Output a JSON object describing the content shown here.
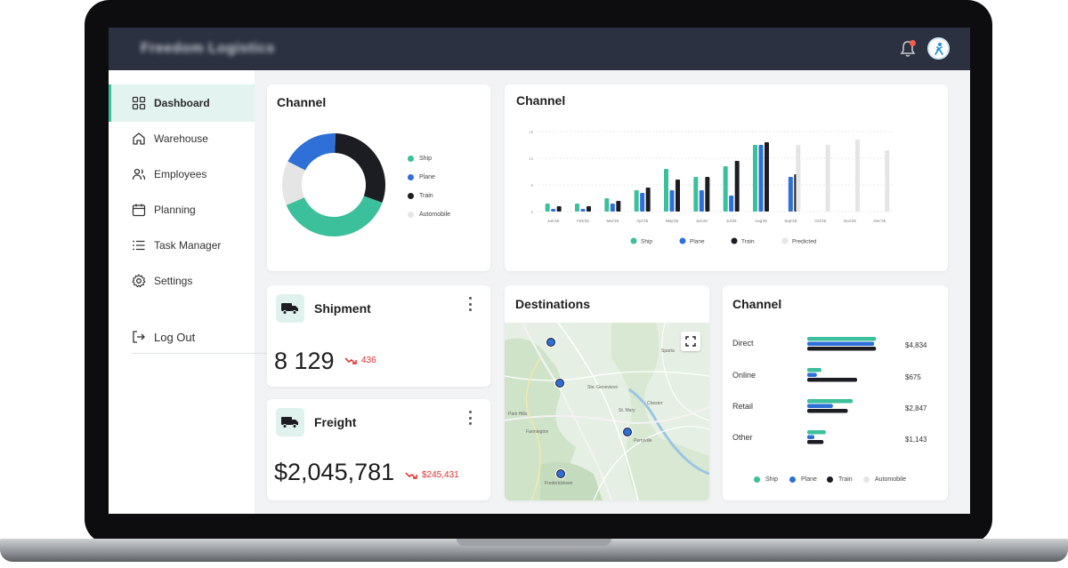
{
  "app": {
    "brand": "Freedom Logistics"
  },
  "colors": {
    "ship": "#3cbf9b",
    "plane": "#2e6fd8",
    "train": "#1b1d23",
    "automobile": "#e5e5e5",
    "predicted": "#e5e5e5",
    "accent": "#3cbf9b",
    "negative": "#e02b2b"
  },
  "topbar": {
    "bell_icon": "bell-icon",
    "avatar_icon": "avatar"
  },
  "sidebar": {
    "items": [
      {
        "label": "Dashboard",
        "icon": "dashboard-icon",
        "active": true
      },
      {
        "label": "Warehouse",
        "icon": "home-icon",
        "active": false
      },
      {
        "label": "Employees",
        "icon": "users-icon",
        "active": false
      },
      {
        "label": "Planning",
        "icon": "calendar-icon",
        "active": false
      },
      {
        "label": "Task Manager",
        "icon": "list-icon",
        "active": false
      },
      {
        "label": "Settings",
        "icon": "gear-icon",
        "active": false
      }
    ],
    "logout": {
      "label": "Log Out",
      "icon": "logout-icon"
    }
  },
  "donut_card": {
    "title": "Channel",
    "legend": [
      "Ship",
      "Plane",
      "Train",
      "Automobile"
    ]
  },
  "column_card": {
    "title": "Channel"
  },
  "shipment": {
    "title": "Shipment",
    "value": "8 129",
    "delta": "436",
    "icon": "truck-icon"
  },
  "freight": {
    "title": "Freight",
    "value": "$2,045,781",
    "delta": "$245,431",
    "icon": "truck-icon"
  },
  "destinations": {
    "title": "Destinations",
    "map_labels": [
      "Sparta",
      "Ste. Genevieve",
      "St. Mary",
      "Farmington",
      "Perryville",
      "Fredericktown",
      "Chester",
      "Park Hills"
    ]
  },
  "hbar_card": {
    "title": "Channel",
    "rows": [
      {
        "label": "Direct",
        "value": "$4,834"
      },
      {
        "label": "Online",
        "value": "$675"
      },
      {
        "label": "Retail",
        "value": "$2,847"
      },
      {
        "label": "Other",
        "value": "$1,143"
      }
    ],
    "legend": [
      "Ship",
      "Plane",
      "Train",
      "Automobile"
    ]
  },
  "chart_data": [
    {
      "type": "pie",
      "title": "Channel",
      "categories": [
        "Ship",
        "Plane",
        "Train",
        "Automobile"
      ],
      "values": [
        38,
        18,
        30,
        14
      ]
    },
    {
      "type": "bar",
      "title": "Channel",
      "categories": [
        "Jan'25",
        "Feb'25",
        "Mar'25",
        "Apr'25",
        "May'25",
        "Jun'25",
        "Jul'25",
        "Aug'25",
        "Sep'25",
        "Oct'25",
        "Nov'25",
        "Dec'25"
      ],
      "series": [
        {
          "name": "Ship",
          "values": [
            1.5,
            1.5,
            2.5,
            4,
            8,
            6.5,
            8.5,
            12.5,
            0,
            0,
            0,
            0
          ]
        },
        {
          "name": "Plane",
          "values": [
            0.5,
            0.5,
            1.5,
            3.5,
            4,
            4,
            3,
            12.5,
            6.5,
            0,
            0,
            0
          ]
        },
        {
          "name": "Train",
          "values": [
            1,
            1,
            2,
            4.5,
            6,
            6.5,
            9.5,
            13,
            7,
            0,
            0,
            0
          ]
        },
        {
          "name": "Predicted",
          "values": [
            0,
            0,
            0,
            0,
            0,
            0,
            0,
            0,
            12.5,
            12.5,
            13.5,
            11.5
          ]
        }
      ],
      "ylim": [
        0,
        15
      ],
      "legend": [
        "Ship",
        "Plane",
        "Train",
        "Predicted"
      ]
    },
    {
      "type": "bar",
      "orientation": "horizontal",
      "title": "Channel",
      "categories": [
        "Direct",
        "Online",
        "Retail",
        "Other"
      ],
      "series": [
        {
          "name": "Ship",
          "values": [
            4834,
            1000,
            3200,
            1300
          ]
        },
        {
          "name": "Plane",
          "values": [
            4700,
            675,
            1800,
            500
          ]
        },
        {
          "name": "Train",
          "values": [
            4834,
            3500,
            2847,
            1143
          ]
        }
      ],
      "value_labels": [
        "$4,834",
        "$675",
        "$2,847",
        "$1,143"
      ]
    }
  ]
}
